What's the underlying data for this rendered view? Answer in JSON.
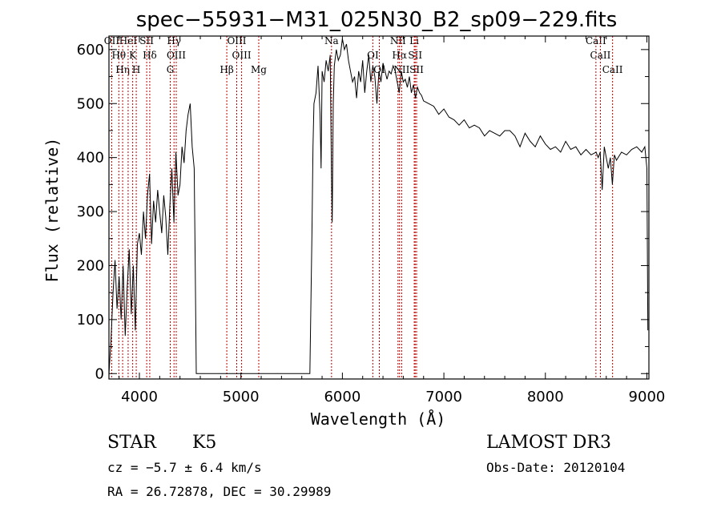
{
  "chart_data": {
    "type": "line",
    "title": "spec−55931−M31_025N30_B2_sp09−229.fits",
    "xlabel": "Wavelength (Å)",
    "ylabel": "Flux (relative)",
    "xlim": [
      3700,
      9020
    ],
    "ylim": [
      -10,
      625
    ],
    "xticks": [
      4000,
      5000,
      6000,
      7000,
      8000,
      9000
    ],
    "xtick_labels": [
      "4000",
      "5000",
      "6000",
      "7000",
      "8000",
      "9000"
    ],
    "yticks": [
      0,
      100,
      200,
      300,
      400,
      500,
      600
    ],
    "ytick_labels": [
      "0",
      "100",
      "200",
      "300",
      "400",
      "500",
      "600"
    ],
    "series": [
      {
        "name": "flux",
        "x": [
          3700,
          3720,
          3740,
          3760,
          3780,
          3800,
          3820,
          3840,
          3860,
          3880,
          3900,
          3920,
          3940,
          3960,
          3980,
          4000,
          4020,
          4040,
          4060,
          4080,
          4100,
          4120,
          4140,
          4160,
          4180,
          4200,
          4220,
          4240,
          4260,
          4280,
          4300,
          4320,
          4340,
          4360,
          4380,
          4400,
          4420,
          4440,
          4460,
          4480,
          4500,
          4520,
          4540,
          4550,
          4560,
          4570,
          5680,
          5700,
          5710,
          5720,
          5740,
          5760,
          5780,
          5790,
          5800,
          5820,
          5840,
          5860,
          5880,
          5892,
          5900,
          5910,
          5920,
          5940,
          5960,
          5980,
          6000,
          6020,
          6040,
          6060,
          6080,
          6100,
          6120,
          6140,
          6160,
          6180,
          6200,
          6220,
          6240,
          6260,
          6280,
          6300,
          6320,
          6340,
          6360,
          6380,
          6400,
          6420,
          6440,
          6460,
          6480,
          6500,
          6520,
          6540,
          6560,
          6580,
          6600,
          6620,
          6640,
          6660,
          6680,
          6700,
          6720,
          6740,
          6760,
          6780,
          6800,
          6850,
          6900,
          6950,
          7000,
          7050,
          7100,
          7150,
          7200,
          7250,
          7300,
          7350,
          7400,
          7450,
          7500,
          7550,
          7600,
          7650,
          7700,
          7750,
          7800,
          7850,
          7900,
          7950,
          8000,
          8050,
          8100,
          8150,
          8200,
          8250,
          8300,
          8350,
          8400,
          8450,
          8500,
          8520,
          8540,
          8560,
          8580,
          8600,
          8620,
          8640,
          8660,
          8680,
          8700,
          8750,
          8800,
          8850,
          8900,
          8950,
          8980,
          9000,
          9010
        ],
        "values": [
          0,
          60,
          150,
          210,
          120,
          180,
          100,
          200,
          70,
          160,
          230,
          110,
          200,
          80,
          240,
          260,
          220,
          300,
          250,
          330,
          370,
          240,
          320,
          280,
          340,
          300,
          260,
          330,
          290,
          220,
          310,
          380,
          280,
          410,
          330,
          350,
          420,
          390,
          450,
          480,
          500,
          420,
          380,
          200,
          0,
          0,
          0,
          260,
          420,
          500,
          520,
          570,
          480,
          380,
          560,
          540,
          580,
          560,
          590,
          380,
          280,
          500,
          570,
          600,
          580,
          590,
          620,
          600,
          610,
          580,
          560,
          540,
          550,
          510,
          560,
          540,
          580,
          520,
          560,
          590,
          540,
          570,
          550,
          500,
          560,
          540,
          575,
          560,
          545,
          560,
          555,
          570,
          560,
          540,
          520,
          560,
          540,
          545,
          530,
          550,
          520,
          535,
          510,
          530,
          520,
          515,
          505,
          500,
          495,
          480,
          490,
          475,
          470,
          460,
          470,
          455,
          460,
          455,
          440,
          450,
          445,
          440,
          450,
          450,
          440,
          420,
          445,
          430,
          420,
          440,
          425,
          415,
          420,
          410,
          430,
          415,
          420,
          405,
          415,
          405,
          410,
          400,
          410,
          340,
          420,
          400,
          380,
          400,
          350,
          405,
          395,
          410,
          405,
          415,
          420,
          410,
          420,
          380,
          80
        ]
      }
    ],
    "lines": [
      {
        "lam": 3727,
        "label": "OII"
      },
      {
        "lam": 3797,
        "label": "Hθ"
      },
      {
        "lam": 3835,
        "label": "Hη"
      },
      {
        "lam": 3889,
        "label": "HeI"
      },
      {
        "lam": 3934,
        "label": "K"
      },
      {
        "lam": 3969,
        "label": "H"
      },
      {
        "lam": 4072,
        "label": "SII"
      },
      {
        "lam": 4102,
        "label": "Hδ"
      },
      {
        "lam": 4304,
        "label": "G"
      },
      {
        "lam": 4341,
        "label": "Hγ"
      },
      {
        "lam": 4363,
        "label": "OIII"
      },
      {
        "lam": 4861,
        "label": "Hβ"
      },
      {
        "lam": 4959,
        "label": "OIII"
      },
      {
        "lam": 5007,
        "label": "OIII"
      },
      {
        "lam": 5176,
        "label": "Mg"
      },
      {
        "lam": 5893,
        "label": "Na"
      },
      {
        "lam": 6300,
        "label": "OI"
      },
      {
        "lam": 6364,
        "label": "OI"
      },
      {
        "lam": 6548,
        "label": "NII"
      },
      {
        "lam": 6563,
        "label": "Hα"
      },
      {
        "lam": 6584,
        "label": "NII"
      },
      {
        "lam": 6708,
        "label": "Li"
      },
      {
        "lam": 6717,
        "label": "SII"
      },
      {
        "lam": 6731,
        "label": "SII"
      },
      {
        "lam": 8498,
        "label": "CaII"
      },
      {
        "lam": 8542,
        "label": "CaII"
      },
      {
        "lam": 8662,
        "label": "CaII"
      }
    ],
    "line_color": "#000000",
    "marker_color": "#c00000",
    "grid": false
  },
  "info": {
    "object_class": "STAR",
    "subclass": "K5",
    "survey": "LAMOST DR3",
    "redshift": "cz = −5.7 ± 6.4 km/s",
    "obs_date": "Obs-Date: 20120104",
    "coords": "RA =  26.72878, DEC =  30.29989"
  }
}
